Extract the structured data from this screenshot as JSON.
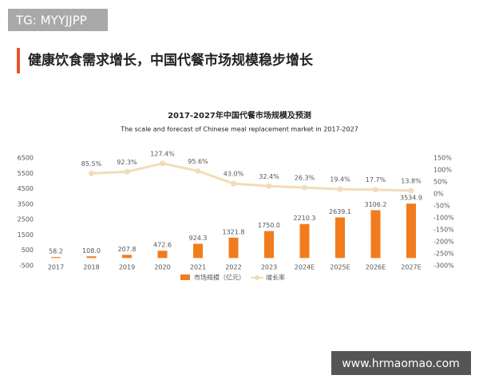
{
  "watermark": "TG: MYYJJPP",
  "heading": "健康饮食需求增长，中国代餐市场规模稳步增长",
  "footer": "www.hrmaomao.com",
  "chart_data": {
    "type": "combo",
    "title": "2017-2027年中国代餐市场规模及预测",
    "subtitle": "The scale and forecast of Chinese meal replacement market in 2017-2027",
    "categories": [
      "2017",
      "2018",
      "2019",
      "2020",
      "2021",
      "2022",
      "2023",
      "2024E",
      "2025E",
      "2026E",
      "2027E"
    ],
    "series": [
      {
        "name": "市场规模（亿元）",
        "type": "bar",
        "color": "#f07c1e",
        "values": [
          58.2,
          108.0,
          207.8,
          472.6,
          924.3,
          1321.8,
          1750.0,
          2210.3,
          2639.1,
          3106.2,
          3534.9
        ],
        "value_labels": [
          "58.2",
          "108.0",
          "207.8",
          "472.6",
          "924.3",
          "1321.8",
          "1750.0",
          "2210.3",
          "2639.1",
          "3106.2",
          "3534.9"
        ]
      },
      {
        "name": "增长率",
        "type": "line",
        "axis": "y2",
        "color": "#f2dcb8",
        "values": [
          null,
          85.5,
          92.3,
          127.4,
          95.6,
          43.0,
          32.4,
          26.3,
          19.4,
          17.7,
          13.8
        ],
        "value_labels": [
          null,
          "85.5%",
          "92.3%",
          "127.4%",
          "95.6%",
          "43.0%",
          "32.4%",
          "26.3%",
          "19.4%",
          "17.7%",
          "13.8%"
        ]
      }
    ],
    "ylim": [
      -500,
      6500
    ],
    "yticks": [
      -500,
      500,
      1500,
      2500,
      3500,
      4500,
      5500,
      6500
    ],
    "y2lim": [
      -300,
      150
    ],
    "y2ticks": [
      {
        "value": -300,
        "label": "-300%"
      },
      {
        "value": -250,
        "label": "-250%"
      },
      {
        "value": -200,
        "label": "-200%"
      },
      {
        "value": -150,
        "label": "-150%"
      },
      {
        "value": -100,
        "label": "-100%"
      },
      {
        "value": -50,
        "label": "-50%"
      },
      {
        "value": 0,
        "label": "0%"
      },
      {
        "value": 50,
        "label": "50%"
      },
      {
        "value": 100,
        "label": "100%"
      },
      {
        "value": 150,
        "label": "150%"
      }
    ],
    "grid": false
  }
}
